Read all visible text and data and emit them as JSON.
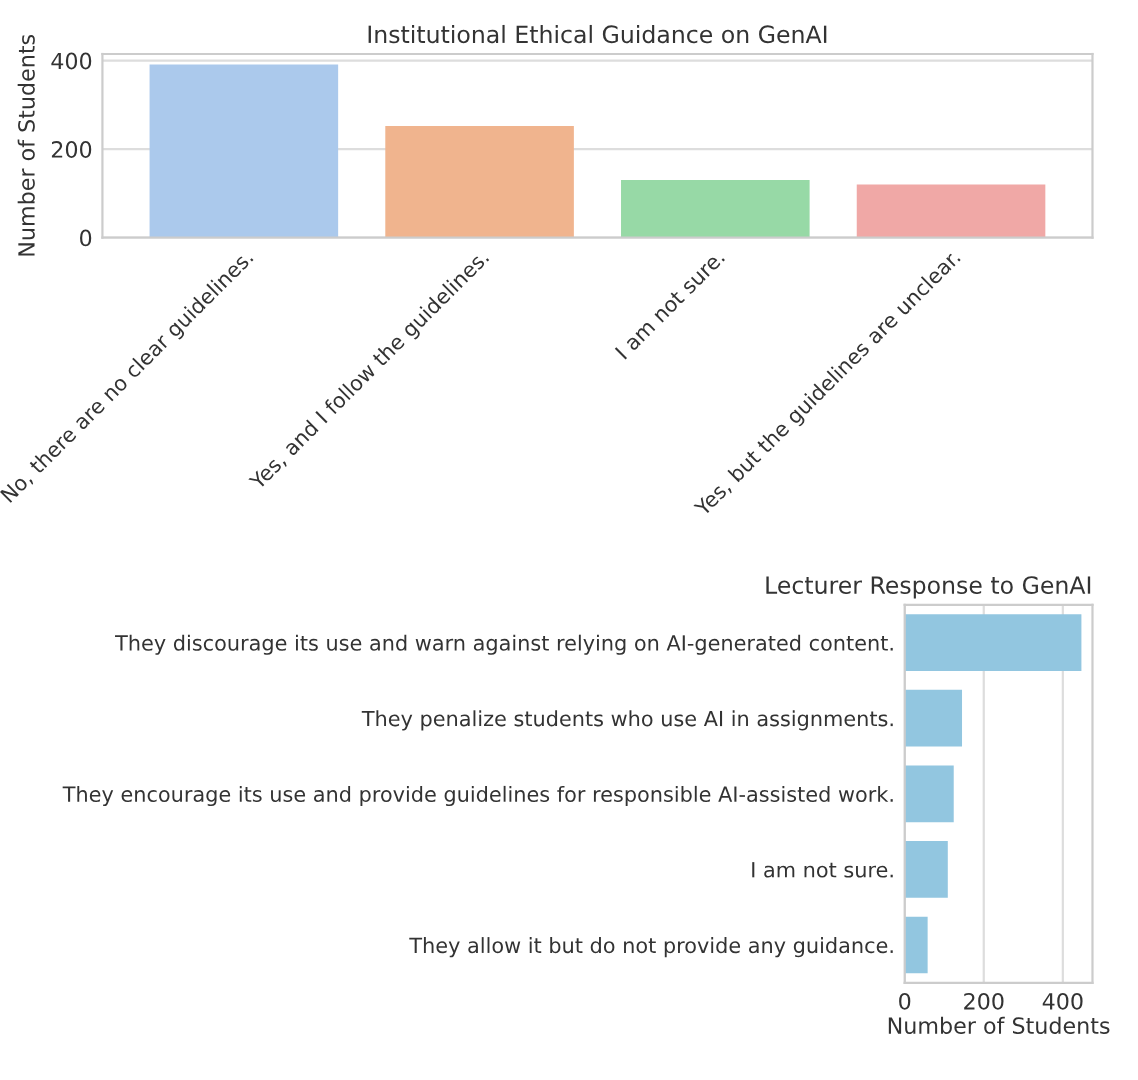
{
  "chart_data": [
    {
      "type": "bar",
      "title": "Institutional Ethical Guidance on GenAI",
      "ylabel": "Number of Students",
      "categories": [
        "No, there are no clear guidelines.",
        "Yes, and I follow the guidelines.",
        "I am not sure.",
        "Yes, but the guidelines are unclear."
      ],
      "values": [
        391,
        252,
        130,
        120
      ],
      "colors": [
        "#abc9ec",
        "#f0b48e",
        "#97d9a6",
        "#f0a8a6"
      ],
      "ylim": [
        0,
        415
      ],
      "yticks": [
        0,
        200,
        400
      ],
      "grid": "y"
    },
    {
      "type": "bar",
      "orientation": "horizontal",
      "title": "Lecturer Response to GenAI",
      "xlabel": "Number of Students",
      "categories": [
        "They discourage its use and warn against relying on AI-generated content.",
        "They penalize students who use AI in assignments.",
        "They encourage its use and provide guidelines for responsible AI-assisted work.",
        "I am not sure.",
        "They allow it but do not provide any guidance."
      ],
      "values": [
        447,
        145,
        124,
        109,
        58
      ],
      "color": "#92c6e0",
      "xlim": [
        0,
        475
      ],
      "xticks": [
        0,
        200,
        400
      ],
      "grid": "x"
    }
  ]
}
